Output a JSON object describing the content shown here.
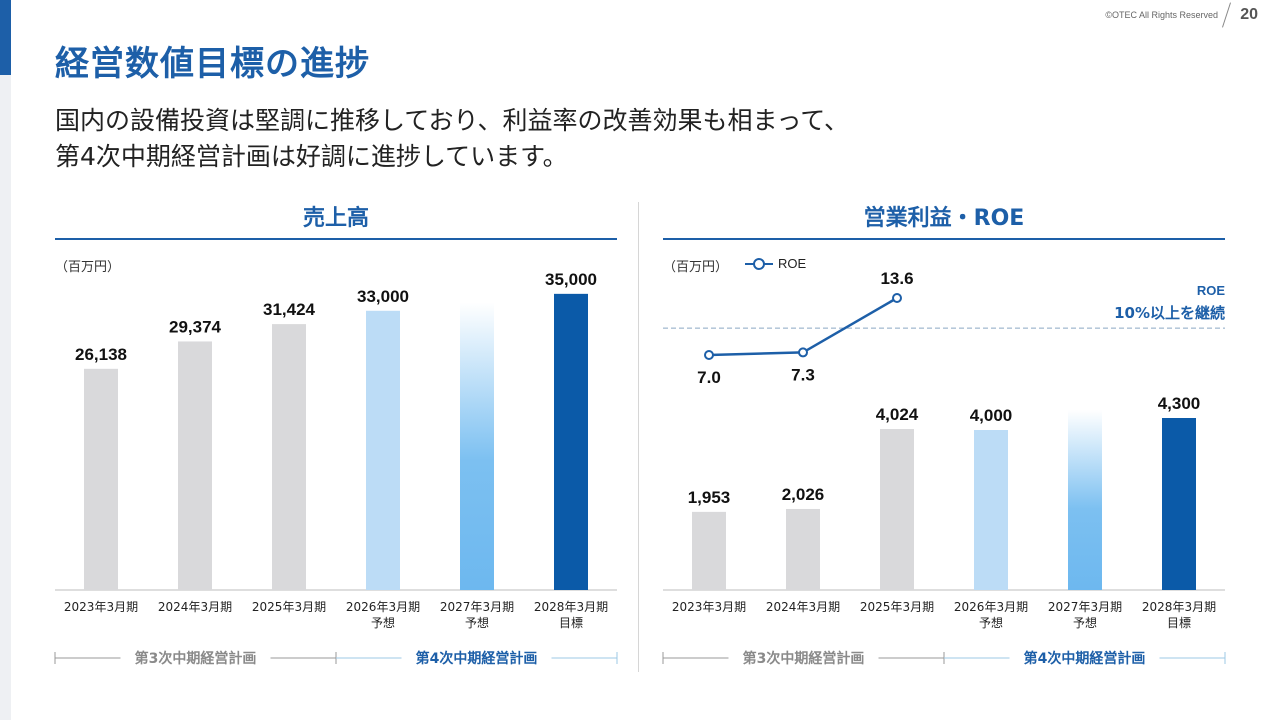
{
  "header": {
    "copyright": "©OTEC All Rights Reserved",
    "page_number": "20"
  },
  "title": "経営数値目標の進捗",
  "subtitle": {
    "line1": "国内の設備投資は堅調に推移しており、利益率の改善効果も相まって、",
    "line2": "第4次中期経営計画は好調に進捗しています。"
  },
  "colors": {
    "brand": "#1d5fa8",
    "actual": "#d9d9db",
    "forecast_light": "#bcdcf6",
    "forecast_mid": "#6db8ef",
    "target": "#0b5aa8"
  },
  "chart_data": [
    {
      "type": "bar",
      "title": "売上高",
      "unit": "（百万円）",
      "categories": [
        [
          "2023年3月期"
        ],
        [
          "2024年3月期"
        ],
        [
          "2025年3月期"
        ],
        [
          "2026年3月期",
          "予想"
        ],
        [
          "2027年3月期",
          "予想"
        ],
        [
          "2028年3月期",
          "目標"
        ]
      ],
      "values": [
        26138,
        29374,
        31424,
        33000,
        null,
        35000
      ],
      "value_labels": [
        "26,138",
        "29,374",
        "31,424",
        "33,000",
        "",
        "35,000"
      ],
      "ylim": [
        0,
        39000
      ],
      "bar_styles": [
        "actual",
        "actual",
        "actual",
        "forecast_light",
        "gradient",
        "target"
      ],
      "gradient_placeholder_value": 34000,
      "periods": [
        {
          "label": "第3次中期経営計画",
          "span": [
            0,
            2
          ]
        },
        {
          "label": "第4次中期経営計画",
          "span": [
            3,
            5
          ]
        }
      ]
    },
    {
      "type": "bar+line",
      "title": "営業利益・ROE",
      "unit": "（百万円）",
      "legend": "ROE",
      "categories": [
        [
          "2023年3月期"
        ],
        [
          "2024年3月期"
        ],
        [
          "2025年3月期"
        ],
        [
          "2026年3月期",
          "予想"
        ],
        [
          "2027年3月期",
          "予想"
        ],
        [
          "2028年3月期",
          "目標"
        ]
      ],
      "values": [
        1953,
        2026,
        4024,
        4000,
        null,
        4300
      ],
      "value_labels": [
        "1,953",
        "2,026",
        "4,024",
        "4,000",
        "",
        "4,300"
      ],
      "ylim": [
        0,
        8500
      ],
      "bar_styles": [
        "actual",
        "actual",
        "actual",
        "forecast_light",
        "gradient",
        "target"
      ],
      "gradient_placeholder_value": 4500,
      "roe": {
        "name": "ROE",
        "values": [
          7.0,
          7.3,
          13.6
        ],
        "labels": [
          "7.0",
          "7.3",
          "13.6"
        ],
        "ylim": [
          0,
          20
        ]
      },
      "roe_target": {
        "value": 10,
        "label_line1": "ROE",
        "label_line2": "10%以上を継続"
      },
      "periods": [
        {
          "label": "第3次中期経営計画",
          "span": [
            0,
            2
          ]
        },
        {
          "label": "第4次中期経営計画",
          "span": [
            3,
            5
          ]
        }
      ]
    }
  ]
}
